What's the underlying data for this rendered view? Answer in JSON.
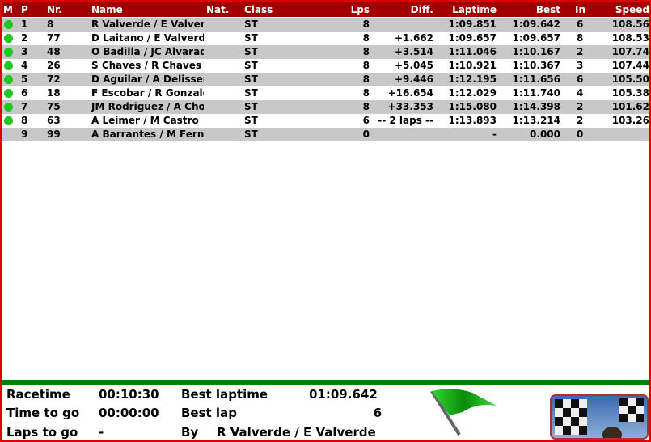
{
  "headers": {
    "m": "M",
    "p": "P",
    "nr": "Nr.",
    "name": "Name",
    "nat": "Nat.",
    "class": "Class",
    "lps": "Lps",
    "diff": "Diff.",
    "laptime": "Laptime",
    "best": "Best",
    "in": "In",
    "speed": "Speed"
  },
  "rows": [
    {
      "active": true,
      "p": "1",
      "nr": "8",
      "name": "R Valverde / E Valverde",
      "nat": "",
      "class": "ST",
      "lps": "8",
      "diff": "",
      "laptime": "1:09.851",
      "best": "1:09.642",
      "in": "6",
      "speed": "108.56"
    },
    {
      "active": true,
      "p": "2",
      "nr": "77",
      "name": "D Laitano /  E Valverde",
      "nat": "",
      "class": "ST",
      "lps": "8",
      "diff": "+1.662",
      "laptime": "1:09.657",
      "best": "1:09.657",
      "in": "8",
      "speed": "108.53"
    },
    {
      "active": true,
      "p": "3",
      "nr": "48",
      "name": "O Badilla / JC Alvarado",
      "nat": "",
      "class": "ST",
      "lps": "8",
      "diff": "+3.514",
      "laptime": "1:11.046",
      "best": "1:10.167",
      "in": "2",
      "speed": "107.74"
    },
    {
      "active": true,
      "p": "4",
      "nr": "26",
      "name": "S Chaves / R Chaves",
      "nat": "",
      "class": "ST",
      "lps": "8",
      "diff": "+5.045",
      "laptime": "1:10.921",
      "best": "1:10.367",
      "in": "3",
      "speed": "107.44"
    },
    {
      "active": true,
      "p": "5",
      "nr": "72",
      "name": "D Aguilar / A Delisser",
      "nat": "",
      "class": "ST",
      "lps": "8",
      "diff": "+9.446",
      "laptime": "1:12.195",
      "best": "1:11.656",
      "in": "6",
      "speed": "105.50"
    },
    {
      "active": true,
      "p": "6",
      "nr": "18",
      "name": "F Escobar / R Gonzalez",
      "nat": "",
      "class": "ST",
      "lps": "8",
      "diff": "+16.654",
      "laptime": "1:12.029",
      "best": "1:11.740",
      "in": "4",
      "speed": "105.38"
    },
    {
      "active": true,
      "p": "7",
      "nr": "75",
      "name": "JM Rodriguez / A Chooo",
      "nat": "",
      "class": "ST",
      "lps": "8",
      "diff": "+33.353",
      "laptime": "1:15.080",
      "best": "1:14.398",
      "in": "2",
      "speed": "101.62"
    },
    {
      "active": true,
      "p": "8",
      "nr": "63",
      "name": "A Leimer / M Castro",
      "nat": "",
      "class": "ST",
      "lps": "6",
      "diff": "-- 2 laps --",
      "laptime": "1:13.893",
      "best": "1:13.214",
      "in": "2",
      "speed": "103.26"
    },
    {
      "active": false,
      "p": "9",
      "nr": "99",
      "name": "A Barrantes / M Fernandez",
      "nat": "",
      "class": "ST",
      "lps": "0",
      "diff": "",
      "laptime": "-",
      "best": "0.000",
      "in": "0",
      "speed": ""
    }
  ],
  "footer": {
    "racetime_label": "Racetime",
    "racetime": "00:10:30",
    "timetogo_label": "Time to go",
    "timetogo": "00:00:00",
    "lapstogo_label": "Laps to go",
    "lapstogo": "-",
    "bestlaptime_label": "Best laptime",
    "bestlaptime": "01:09.642",
    "bestlap_label": "Best lap",
    "bestlap": "6",
    "by_label": "By",
    "by": "R Valverde  / E Valverde"
  },
  "flag_state": "green-flag",
  "colors": {
    "header": "#a00000",
    "row_alt": "#c8c8c8",
    "active": "#1ec81e",
    "border": "#e00000",
    "divider": "#008000"
  }
}
